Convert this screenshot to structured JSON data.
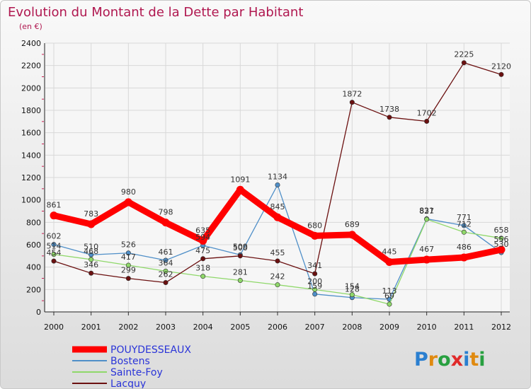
{
  "chart_data": {
    "type": "line",
    "title": "Evolution du Montant de la Dette par Habitant",
    "subtitle": "(en €)",
    "x": [
      "2000",
      "2001",
      "2002",
      "2003",
      "2004",
      "2005",
      "2006",
      "2007",
      "2008",
      "2009",
      "2010",
      "2011",
      "2012"
    ],
    "ylim": [
      0,
      2400
    ],
    "yticks": [
      0,
      200,
      400,
      600,
      800,
      1000,
      1200,
      1400,
      1600,
      1800,
      2000,
      2200,
      2400
    ],
    "grid": true,
    "legend_position": "bottom-left",
    "series": [
      {
        "name": "POUYDESSEAUX",
        "color": "#ff0000",
        "values": [
          861,
          783,
          980,
          798,
          635,
          1091,
          845,
          680,
          689,
          445,
          467,
          486,
          556
        ]
      },
      {
        "name": "Bostens",
        "color": "#4f8fc8",
        "values": [
          602,
          510,
          526,
          461,
          594,
          509,
          1134,
          159,
          128,
          113,
          831,
          771,
          530
        ]
      },
      {
        "name": "Sainte-Foy",
        "color": "#8fd86a",
        "values": [
          514,
          468,
          417,
          364,
          318,
          281,
          242,
          200,
          154,
          69,
          827,
          712,
          658
        ]
      },
      {
        "name": "Lacquy",
        "color": "#6b1010",
        "values": [
          454,
          346,
          299,
          262,
          475,
          500,
          455,
          341,
          1872,
          1738,
          1702,
          2225,
          2120
        ]
      }
    ]
  },
  "logo": {
    "text": "Proxiti"
  }
}
